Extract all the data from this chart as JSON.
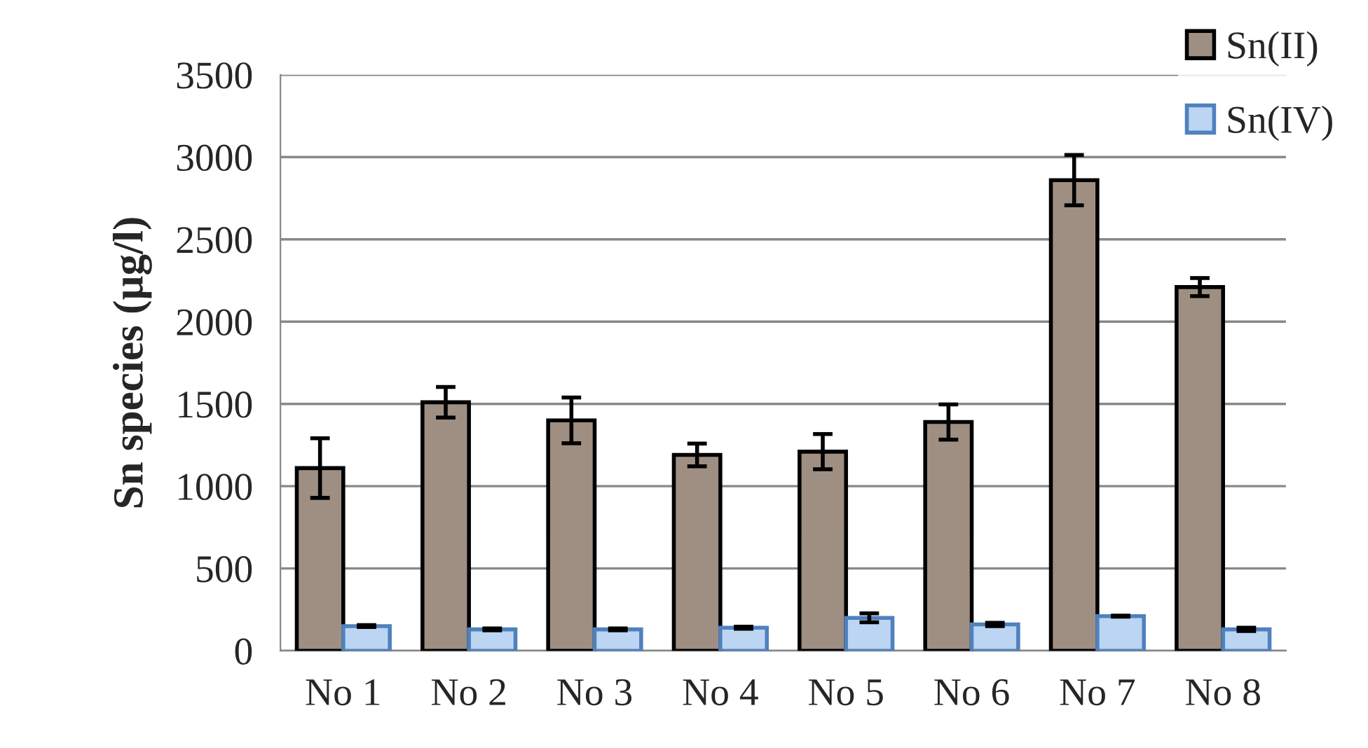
{
  "chart_data": {
    "type": "bar",
    "ylabel": "Sn species (µg/l)",
    "categories": [
      "No 1",
      "No 2",
      "No 3",
      "No 4",
      "No 5",
      "No 6",
      "No 7",
      "No 8"
    ],
    "series": [
      {
        "name": "Sn(II)",
        "color": "#9e8f82",
        "values": [
          1110,
          1510,
          1400,
          1190,
          1210,
          1390,
          2860,
          2210
        ],
        "errors": [
          181,
          93,
          139,
          69,
          107,
          107,
          153,
          55
        ]
      },
      {
        "name": "Sn(IV)",
        "color": "#bcd5f3",
        "values": [
          150,
          130,
          130,
          140,
          200,
          160,
          210,
          130
        ],
        "errors": [
          6,
          6,
          6,
          6,
          27,
          10,
          3,
          10
        ]
      }
    ],
    "ylim": [
      0,
      3500
    ],
    "yticks": [
      0,
      500,
      1000,
      1500,
      2000,
      2500,
      3000,
      3500
    ],
    "grid": "y",
    "legend": "top right"
  }
}
